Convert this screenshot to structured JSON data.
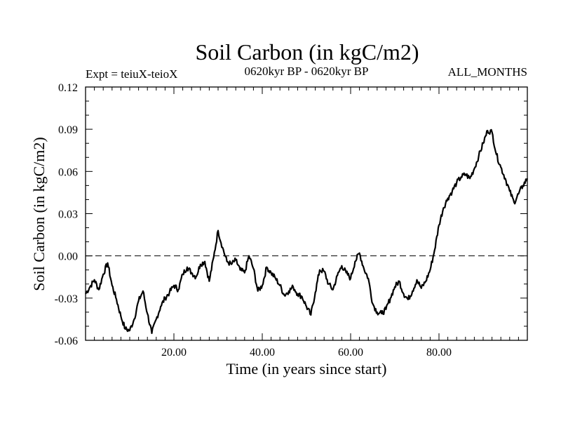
{
  "chart_data": {
    "type": "line",
    "title": "Soil Carbon (in kgC/m2)",
    "subtitle_left": "Expt = teiuX-teioX",
    "subtitle_center": "0620kyr BP - 0620kyr BP",
    "subtitle_right": "ALL_MONTHS",
    "xlabel": "Time (in years since start)",
    "ylabel": "Soil Carbon (in kgC/m2)",
    "xlim": [
      0,
      100
    ],
    "ylim": [
      -0.06,
      0.12
    ],
    "xticks": [
      20,
      40,
      60,
      80
    ],
    "xtick_labels": [
      "20.00",
      "40.00",
      "60.00",
      "80.00"
    ],
    "yticks": [
      -0.06,
      -0.03,
      0.0,
      0.03,
      0.06,
      0.09,
      0.12
    ],
    "ytick_labels": [
      "-0.06",
      "-0.03",
      "0.00",
      "0.03",
      "0.06",
      "0.09",
      "0.12"
    ],
    "reference_line": {
      "y": 0.0,
      "style": "dashed"
    },
    "series": [
      {
        "name": "Soil Carbon",
        "color": "#000000",
        "x": [
          0,
          1,
          2,
          3,
          4,
          5,
          6,
          7,
          8,
          9,
          10,
          11,
          12,
          13,
          14,
          15,
          16,
          17,
          18,
          19,
          20,
          21,
          22,
          23,
          24,
          25,
          26,
          27,
          28,
          29,
          30,
          31,
          32,
          33,
          34,
          35,
          36,
          37,
          38,
          39,
          40,
          41,
          42,
          43,
          44,
          45,
          46,
          47,
          48,
          49,
          50,
          51,
          52,
          53,
          54,
          55,
          56,
          57,
          58,
          59,
          60,
          61,
          62,
          63,
          64,
          65,
          66,
          67,
          68,
          69,
          70,
          71,
          72,
          73,
          74,
          75,
          76,
          77,
          78,
          79,
          80,
          81,
          82,
          83,
          84,
          85,
          86,
          87,
          88,
          89,
          90,
          91,
          92,
          93,
          94,
          95,
          96,
          97,
          98,
          99,
          100
        ],
        "y": [
          -0.027,
          -0.022,
          -0.017,
          -0.024,
          -0.013,
          -0.005,
          -0.021,
          -0.031,
          -0.043,
          -0.052,
          -0.053,
          -0.045,
          -0.032,
          -0.025,
          -0.041,
          -0.055,
          -0.045,
          -0.036,
          -0.03,
          -0.026,
          -0.021,
          -0.024,
          -0.013,
          -0.008,
          -0.012,
          -0.015,
          -0.006,
          -0.004,
          -0.018,
          -0.001,
          0.018,
          0.006,
          -0.004,
          -0.006,
          -0.003,
          -0.01,
          -0.012,
          0.0,
          -0.009,
          -0.025,
          -0.021,
          -0.008,
          -0.012,
          -0.016,
          -0.021,
          -0.028,
          -0.025,
          -0.022,
          -0.027,
          -0.029,
          -0.036,
          -0.042,
          -0.026,
          -0.01,
          -0.011,
          -0.02,
          -0.024,
          -0.014,
          -0.007,
          -0.012,
          -0.016,
          -0.004,
          0.002,
          -0.009,
          -0.016,
          -0.034,
          -0.04,
          -0.041,
          -0.038,
          -0.03,
          -0.022,
          -0.018,
          -0.027,
          -0.031,
          -0.025,
          -0.017,
          -0.023,
          -0.018,
          -0.01,
          0.004,
          0.022,
          0.034,
          0.041,
          0.046,
          0.052,
          0.056,
          0.058,
          0.055,
          0.062,
          0.071,
          0.08,
          0.089,
          0.088,
          0.072,
          0.063,
          0.055,
          0.046,
          0.038,
          0.044,
          0.05,
          0.055
        ]
      }
    ]
  }
}
